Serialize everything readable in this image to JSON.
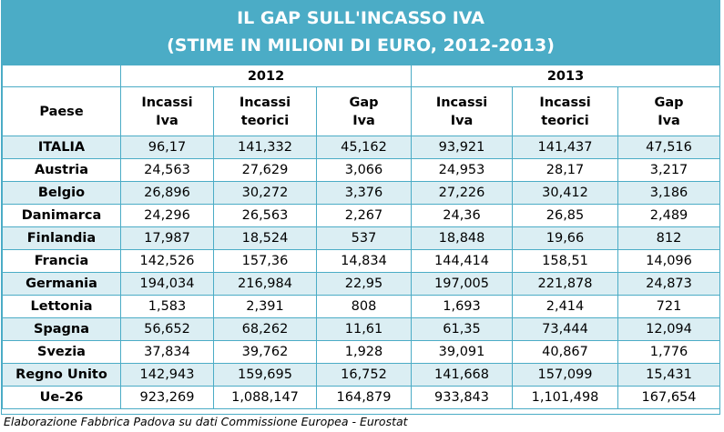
{
  "title": {
    "line1": "IL GAP SULL'INCASSO IVA",
    "line2": "(STIME IN MILIONI DI EURO, 2012-2013)"
  },
  "colors": {
    "accent": "#4bacc6",
    "band": "#dbeef3",
    "title_text": "#ffffff"
  },
  "header": {
    "years": [
      "2012",
      "2013"
    ],
    "country_col": "Paese",
    "columns": [
      {
        "line1": "Incassi",
        "line2": "Iva"
      },
      {
        "line1": "Incassi",
        "line2": "teorici"
      },
      {
        "line1": "Gap",
        "line2": "Iva"
      },
      {
        "line1": "Incassi",
        "line2": "Iva"
      },
      {
        "line1": "Incassi",
        "line2": "teorici"
      },
      {
        "line1": "Gap",
        "line2": "Iva"
      }
    ]
  },
  "chart_data": {
    "type": "table",
    "title": "IL GAP SULL'INCASSO IVA (STIME IN MILIONI DI EURO, 2012-2013)",
    "column_groups": [
      "2012",
      "2013"
    ],
    "columns": [
      "Paese",
      "Incassi Iva",
      "Incassi teorici",
      "Gap Iva",
      "Incassi Iva",
      "Incassi teorici",
      "Gap Iva"
    ],
    "rows": [
      [
        "ITALIA",
        "96,17",
        "141,332",
        "45,162",
        "93,921",
        "141,437",
        "47,516"
      ],
      [
        "Austria",
        "24,563",
        "27,629",
        "3,066",
        "24,953",
        "28,17",
        "3,217"
      ],
      [
        "Belgio",
        "26,896",
        "30,272",
        "3,376",
        "27,226",
        "30,412",
        "3,186"
      ],
      [
        "Danimarca",
        "24,296",
        "26,563",
        "2,267",
        "24,36",
        "26,85",
        "2,489"
      ],
      [
        "Finlandia",
        "17,987",
        "18,524",
        "537",
        "18,848",
        "19,66",
        "812"
      ],
      [
        "Francia",
        "142,526",
        "157,36",
        "14,834",
        "144,414",
        "158,51",
        "14,096"
      ],
      [
        "Germania",
        "194,034",
        "216,984",
        "22,95",
        "197,005",
        "221,878",
        "24,873"
      ],
      [
        "Lettonia",
        "1,583",
        "2,391",
        "808",
        "1,693",
        "2,414",
        "721"
      ],
      [
        "Spagna",
        "56,652",
        "68,262",
        "11,61",
        "61,35",
        "73,444",
        "12,094"
      ],
      [
        "Svezia",
        "37,834",
        "39,762",
        "1,928",
        "39,091",
        "40,867",
        "1,776"
      ],
      [
        "Regno Unito",
        "142,943",
        "159,695",
        "16,752",
        "141,668",
        "157,099",
        "15,431"
      ],
      [
        "Ue-26",
        "923,269",
        "1,088,147",
        "164,879",
        "933,843",
        "1,101,498",
        "167,654"
      ]
    ]
  },
  "source": "Elaborazione Fabbrica Padova su dati Commissione Europea - Eurostat"
}
